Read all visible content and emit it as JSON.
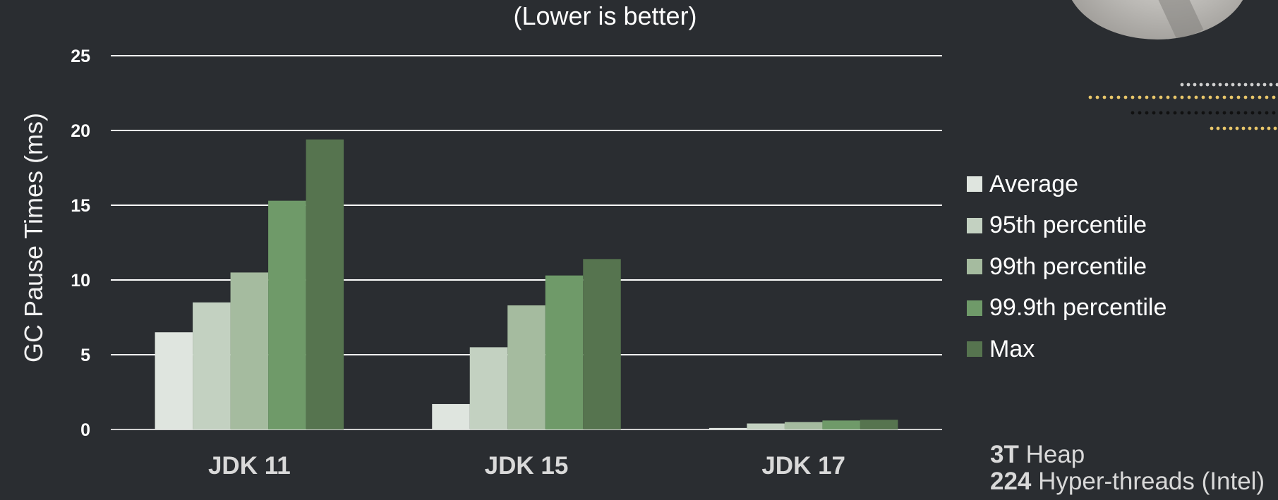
{
  "chart_data": {
    "type": "bar",
    "subtitle": "(Lower is better)",
    "ylabel": "GC Pause Times (ms)",
    "xlabel": "",
    "ylim": [
      0,
      25
    ],
    "yticks": [
      0,
      5,
      10,
      15,
      20,
      25
    ],
    "grid": true,
    "legend_position": "right",
    "categories": [
      "JDK 11",
      "JDK 15",
      "JDK 17"
    ],
    "series": [
      {
        "name": "Average",
        "values": [
          6.5,
          1.7,
          0.1
        ],
        "color": "#dfe5df"
      },
      {
        "name": "95th percentile",
        "values": [
          8.5,
          5.5,
          0.4
        ],
        "color": "#c3d1c1"
      },
      {
        "name": "99th percentile",
        "values": [
          10.5,
          8.3,
          0.5
        ],
        "color": "#a5bb9f"
      },
      {
        "name": "99.9th percentile",
        "values": [
          15.3,
          10.3,
          0.6
        ],
        "color": "#6f9a69"
      },
      {
        "name": "Max",
        "values": [
          19.4,
          11.4,
          0.65
        ],
        "color": "#56744f"
      }
    ]
  },
  "footnote": {
    "heap_value": "3T",
    "heap_label": "Heap",
    "threads_value": "224",
    "threads_label": "Hyper-threads (Intel)"
  },
  "colors": {
    "background": "#2a2d31",
    "gridline": "#ffffff",
    "text": "#ffffff"
  }
}
